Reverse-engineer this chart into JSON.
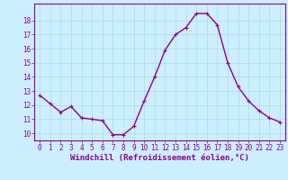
{
  "x": [
    0,
    1,
    2,
    3,
    4,
    5,
    6,
    7,
    8,
    9,
    10,
    11,
    12,
    13,
    14,
    15,
    16,
    17,
    18,
    19,
    20,
    21,
    22,
    23
  ],
  "y": [
    12.7,
    12.1,
    11.5,
    11.9,
    11.1,
    11.0,
    10.9,
    9.9,
    9.9,
    10.5,
    12.3,
    14.0,
    15.9,
    17.0,
    17.5,
    18.5,
    18.5,
    17.7,
    15.0,
    13.3,
    12.3,
    11.6,
    11.1,
    10.8
  ],
  "line_color": "#8b008b",
  "marker": "+",
  "marker_size": 3,
  "marker_linewidth": 0.8,
  "bg_color": "#cceeff",
  "grid_color": "#aadddd",
  "xlabel": "Windchill (Refroidissement éolien,°C)",
  "ylim": [
    9.5,
    19.2
  ],
  "xlim": [
    -0.5,
    23.5
  ],
  "yticks": [
    10,
    11,
    12,
    13,
    14,
    15,
    16,
    17,
    18
  ],
  "xticks": [
    0,
    1,
    2,
    3,
    4,
    5,
    6,
    7,
    8,
    9,
    10,
    11,
    12,
    13,
    14,
    15,
    16,
    17,
    18,
    19,
    20,
    21,
    22,
    23
  ],
  "tick_color": "#8b008b",
  "label_color": "#8b008b",
  "spine_color": "#8b008b",
  "linewidth": 1.0,
  "xlabel_fontsize": 6.5,
  "tick_fontsize": 5.5
}
